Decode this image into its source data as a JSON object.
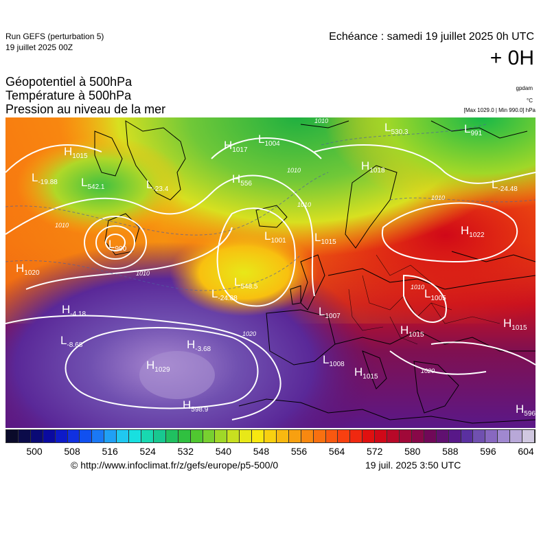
{
  "header": {
    "run_line1": "Run GEFS (perturbation 5)",
    "run_line2": "19 juillet 2025 00Z",
    "echeance": "Echéance : samedi 19 juillet 2025 0h UTC",
    "offset": "+ 0H"
  },
  "titles": {
    "line1": "Géopotentiel à 500hPa",
    "line2": "Température à 500hPa",
    "line3": "Pression au niveau de la mer"
  },
  "units": {
    "geopotential": "gpdam",
    "temperature": "°C",
    "pressure": "[Max 1029.0 | Min 990.0] hPa"
  },
  "colorbar": {
    "ticks": [
      "500",
      "508",
      "516",
      "524",
      "532",
      "540",
      "548",
      "556",
      "564",
      "572",
      "580",
      "588",
      "596",
      "604"
    ],
    "colors": [
      "#0a0a2a",
      "#0b0b4a",
      "#0a0a75",
      "#0a0aa0",
      "#0d1ac8",
      "#1030e0",
      "#1050f0",
      "#1a78f5",
      "#20a0f5",
      "#20c8f0",
      "#18e0e0",
      "#18d8b0",
      "#18c890",
      "#20c060",
      "#30c040",
      "#50c830",
      "#78d030",
      "#a0d828",
      "#c8e020",
      "#e8e818",
      "#f8e810",
      "#f8d010",
      "#f8b810",
      "#f8a010",
      "#f88810",
      "#f87010",
      "#f85810",
      "#f84010",
      "#f02810",
      "#e01010",
      "#d00818",
      "#b80828",
      "#a00838",
      "#880848",
      "#700858",
      "#601070",
      "#581888",
      "#5a30a0",
      "#7050b0",
      "#8868c0",
      "#a088d0",
      "#b8a8d8",
      "#d0c8e0"
    ]
  },
  "map": {
    "pressure_labels": [
      {
        "type": "H",
        "value": "1015"
      },
      {
        "type": "L",
        "value": "-19.88"
      },
      {
        "type": "L",
        "value": "542.1"
      },
      {
        "type": "L",
        "value": "-23.4"
      },
      {
        "type": "L",
        "value": "990"
      },
      {
        "type": "H",
        "value": "1020"
      },
      {
        "type": "H",
        "value": "1017"
      },
      {
        "type": "L",
        "value": "1004"
      },
      {
        "type": "H",
        "value": "556"
      },
      {
        "type": "L",
        "value": "1001"
      },
      {
        "type": "L",
        "value": "548.5"
      },
      {
        "type": "L",
        "value": "-24.88"
      },
      {
        "type": "H",
        "value": "-4.18"
      },
      {
        "type": "L",
        "value": "-8.68"
      },
      {
        "type": "H",
        "value": "-3.68"
      },
      {
        "type": "H",
        "value": "1029"
      },
      {
        "type": "H",
        "value": "598.9"
      },
      {
        "type": "L",
        "value": "1007"
      },
      {
        "type": "L",
        "value": "1008"
      },
      {
        "type": "H",
        "value": "1015"
      },
      {
        "type": "H",
        "value": "1018"
      },
      {
        "type": "L",
        "value": "530.3"
      },
      {
        "type": "L",
        "value": "-24.48"
      },
      {
        "type": "H",
        "value": "1022"
      },
      {
        "type": "L",
        "value": "1015"
      },
      {
        "type": "L",
        "value": "1005"
      },
      {
        "type": "H",
        "value": "1015"
      },
      {
        "type": "H",
        "value": "1015"
      },
      {
        "type": "H",
        "value": "596"
      },
      {
        "type": "L",
        "value": "991"
      }
    ],
    "isobar_labels": [
      "1010",
      "1010",
      "1010",
      "1020",
      "1010",
      "1010",
      "1010",
      "1020",
      "1010"
    ]
  },
  "footer": {
    "copyright": "© http://www.infoclimat.fr/z/gefs/europe/p5-500/0",
    "date": "19 juil. 2025  3:50 UTC"
  }
}
